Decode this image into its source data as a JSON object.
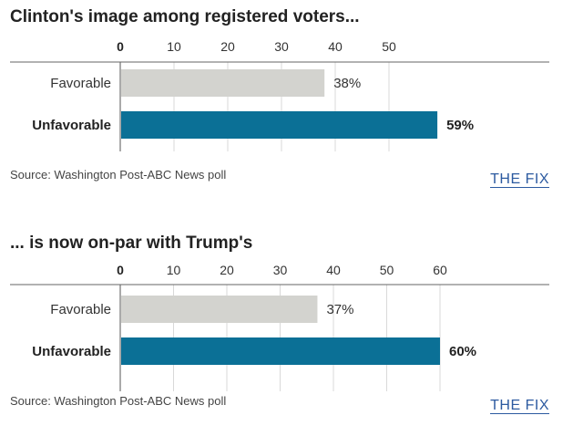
{
  "chart_data": [
    {
      "type": "bar",
      "orientation": "horizontal",
      "title": "Clinton's image among registered voters...",
      "categories": [
        "Favorable",
        "Unfavorable"
      ],
      "values": [
        38,
        59
      ],
      "value_labels": [
        "38%",
        "59%"
      ],
      "xticks": [
        0,
        10,
        20,
        30,
        40,
        50
      ],
      "xtick_labels": [
        "0",
        "10",
        "20",
        "30",
        "40",
        "50"
      ],
      "xlim": [
        0,
        60
      ],
      "grid": true,
      "colors": [
        "#d3d3cf",
        "#0b7096"
      ],
      "source": "Source: Washington Post-ABC News poll",
      "brand": "THE FIX"
    },
    {
      "type": "bar",
      "orientation": "horizontal",
      "title": "... is now on-par with Trump's",
      "categories": [
        "Favorable",
        "Unfavorable"
      ],
      "values": [
        37,
        60
      ],
      "value_labels": [
        "37%",
        "60%"
      ],
      "xticks": [
        0,
        10,
        20,
        30,
        40,
        50,
        60
      ],
      "xtick_labels": [
        "0",
        "10",
        "20",
        "30",
        "40",
        "50",
        "60"
      ],
      "xlim": [
        0,
        60
      ],
      "grid": true,
      "colors": [
        "#d3d3cf",
        "#0b7096"
      ],
      "source": "Source: Washington Post-ABC News poll",
      "brand": "THE FIX"
    }
  ]
}
